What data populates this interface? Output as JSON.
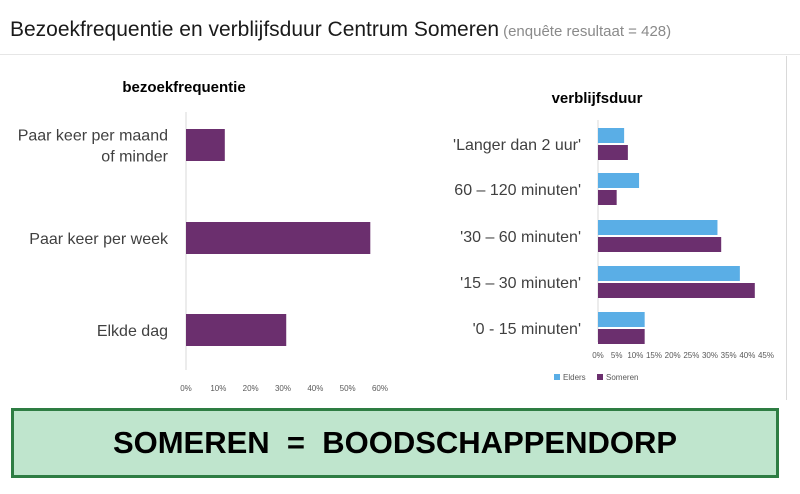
{
  "page": {
    "title": "Bezoekfrequentie en verblijfsduur Centrum Someren",
    "subtitle": "(enquête resultaat = 428)",
    "banner": "SOMEREN  =  BOODSCHAPPENDORP"
  },
  "chart_data": [
    {
      "type": "bar",
      "orientation": "horizontal",
      "title": "bezoekfrequentie",
      "categories": [
        [
          "Paar keer per maand",
          "of minder"
        ],
        [
          "Paar keer per week"
        ],
        [
          "Elkde dag"
        ]
      ],
      "series": [
        {
          "values": [
            12,
            57,
            31
          ],
          "color": "#6b2f6e"
        }
      ],
      "xlim": [
        0,
        60
      ],
      "xticks": [
        "0%",
        "10%",
        "20%",
        "30%",
        "40%",
        "50%",
        "60%"
      ],
      "grid": false
    },
    {
      "type": "bar",
      "orientation": "horizontal",
      "title": "verblijfsduur",
      "categories": [
        "'Langer dan 2 uur'",
        "60 – 120 minuten'",
        "'30 – 60 minuten'",
        "'15 – 30 minuten'",
        "'0 - 15 minuten'"
      ],
      "series": [
        {
          "name": "Elders",
          "values": [
            7,
            11,
            32,
            38,
            12.5
          ],
          "color": "#5aaee6"
        },
        {
          "name": "Someren",
          "values": [
            8,
            5,
            33,
            42,
            12.5
          ],
          "color": "#6b2f6e"
        }
      ],
      "xlim": [
        0,
        45
      ],
      "xticks": [
        "0%",
        "5%",
        "10%",
        "15%",
        "20%",
        "25%",
        "30%",
        "35%",
        "40%",
        "45%"
      ],
      "legend": "bottom-left",
      "grid": false
    }
  ]
}
